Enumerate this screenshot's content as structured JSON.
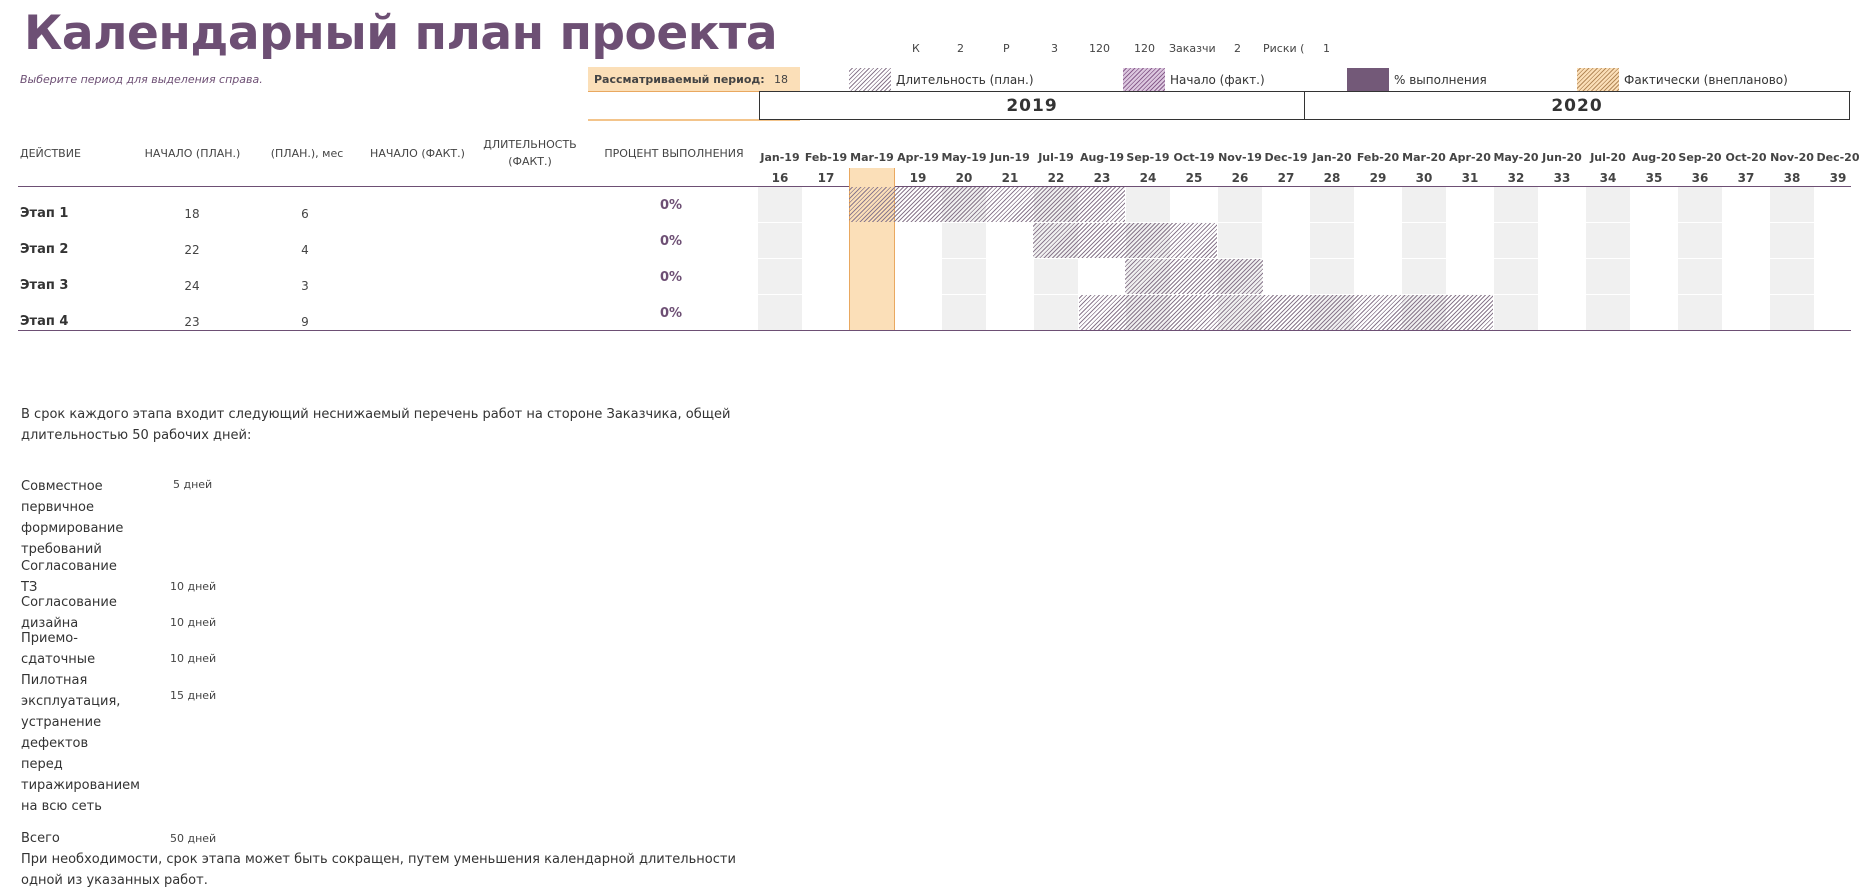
{
  "title": "Календарный план проекта",
  "subtitle": "Выберите период для выделения справа.",
  "stats": [
    "К",
    "2",
    "Р",
    "3",
    "120",
    "120",
    "Заказчи",
    "2",
    "Риски (",
    "1"
  ],
  "period": {
    "label": "Рассматриваемый период:",
    "value": "18"
  },
  "legend": {
    "plan_duration": "Длительность (план.)",
    "actual_start": "Начало (факт.)",
    "percent_complete": "% выполнения",
    "actual_over": "Фактически (внепланово)"
  },
  "years": [
    "2019",
    "2020"
  ],
  "columns": {
    "action": "ДЕЙСТВИЕ",
    "plan_start": "НАЧАЛО (ПЛАН.)",
    "plan_duration": "(ПЛАН.), мес",
    "actual_start": "НАЧАЛО (ФАКТ.)",
    "actual_duration_1": "ДЛИТЕЛЬНОСТЬ",
    "actual_duration_2": "(ФАКТ.)",
    "percent": "ПРОЦЕНТ ВЫПОЛНЕНИЯ"
  },
  "months": [
    "Jan-19",
    "Feb-19",
    "Mar-19",
    "Apr-19",
    "May-19",
    "Jun-19",
    "Jul-19",
    "Aug-19",
    "Sep-19",
    "Oct-19",
    "Nov-19",
    "Dec-19",
    "Jan-20",
    "Feb-20",
    "Mar-20",
    "Apr-20",
    "May-20",
    "Jun-20",
    "Jul-20",
    "Aug-20",
    "Sep-20",
    "Oct-20",
    "Nov-20",
    "Dec-20"
  ],
  "periods": [
    "16",
    "17",
    "18",
    "19",
    "20",
    "21",
    "22",
    "23",
    "24",
    "25",
    "26",
    "27",
    "28",
    "29",
    "30",
    "31",
    "32",
    "33",
    "34",
    "35",
    "36",
    "37",
    "38",
    "39"
  ],
  "first_period": 16,
  "selected_period": 18,
  "tasks": [
    {
      "name": "Этап 1",
      "plan_start": "18",
      "plan_duration": "6",
      "actual_start": "",
      "actual_duration": "",
      "percent": "0%",
      "start": 18,
      "duration": 6
    },
    {
      "name": "Этап 2",
      "plan_start": "22",
      "plan_duration": "4",
      "actual_start": "",
      "actual_duration": "",
      "percent": "0%",
      "start": 22,
      "duration": 4
    },
    {
      "name": "Этап 3",
      "plan_start": "24",
      "plan_duration": "3",
      "actual_start": "",
      "actual_duration": "",
      "percent": "0%",
      "start": 24,
      "duration": 3
    },
    {
      "name": "Этап 4",
      "plan_start": "23",
      "plan_duration": "9",
      "actual_start": "",
      "actual_duration": "",
      "percent": "0%",
      "start": 23,
      "duration": 9
    }
  ],
  "note": {
    "line1": "В срок каждого этапа входит следующий неснижаемый перечень работ на стороне Заказчика, общей",
    "line2": "длительностью 50 рабочих дней:"
  },
  "works": [
    {
      "label": "Совместное первичное формирование требований",
      "value": "5 дней"
    },
    {
      "label": "Согласование ТЗ",
      "value": "10 дней"
    },
    {
      "label": "Согласование дизайна",
      "value": "10 дней"
    },
    {
      "label": "Приемо-сдаточные",
      "value": "10 дней"
    },
    {
      "label": "Пилотная эксплуатация, устранение дефектов перед тиражированием на всю сеть",
      "value": "15 дней"
    }
  ],
  "total": {
    "label": "Всего",
    "value": "50 дней"
  },
  "footer": {
    "line1": "При необходимости, срок этапа может быть сокращен, путем уменьшения календарной длительности",
    "line2": "одной из указанных работ."
  },
  "colors": {
    "accent": "#6d4f74",
    "highlight": "#fbdfb8",
    "grid_shade": "#f0f0f0"
  }
}
